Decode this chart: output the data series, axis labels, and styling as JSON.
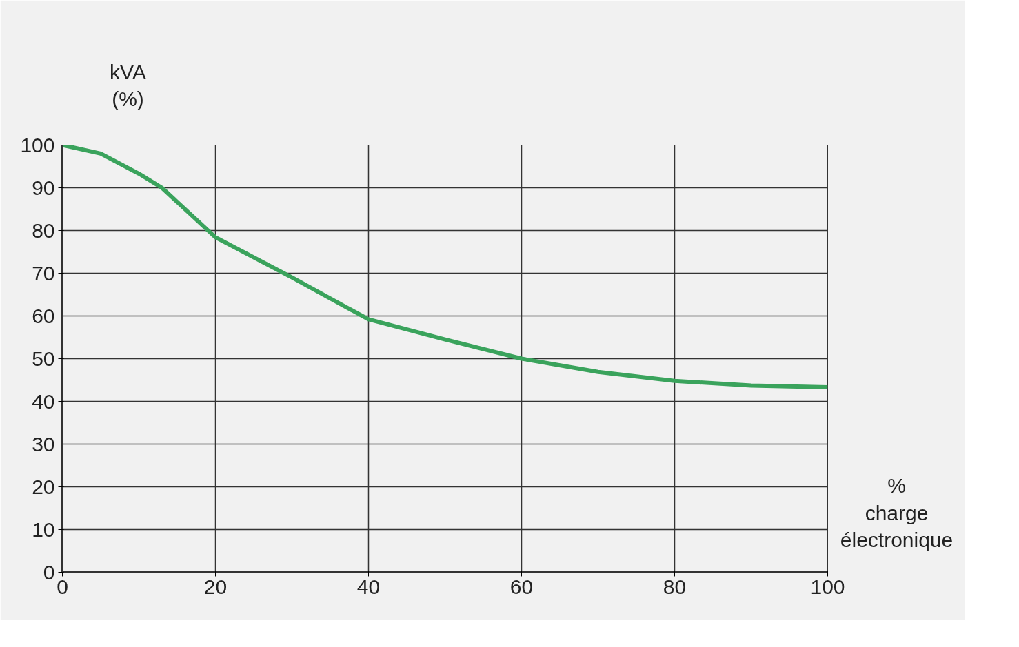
{
  "chart_data": {
    "type": "line",
    "xlabel": "%\ncharge\nélectronique",
    "ylabel": "kVA\n(%)",
    "x": [
      0,
      5,
      10,
      13,
      20,
      30,
      40,
      50,
      60,
      70,
      80,
      90,
      100
    ],
    "series": [
      {
        "color": "#3aa35c",
        "values": [
          100,
          98,
          93.3,
          90,
          78.4,
          69,
          59.2,
          54.5,
          50,
          46.9,
          44.8,
          43.7,
          43.3
        ]
      }
    ],
    "xlim": [
      0,
      100
    ],
    "ylim": [
      0,
      100
    ],
    "xticks": [
      0,
      20,
      40,
      60,
      80,
      100
    ],
    "yticks": [
      0,
      10,
      20,
      30,
      40,
      50,
      60,
      70,
      80,
      90,
      100
    ],
    "grid": true,
    "line_style": "solid"
  }
}
